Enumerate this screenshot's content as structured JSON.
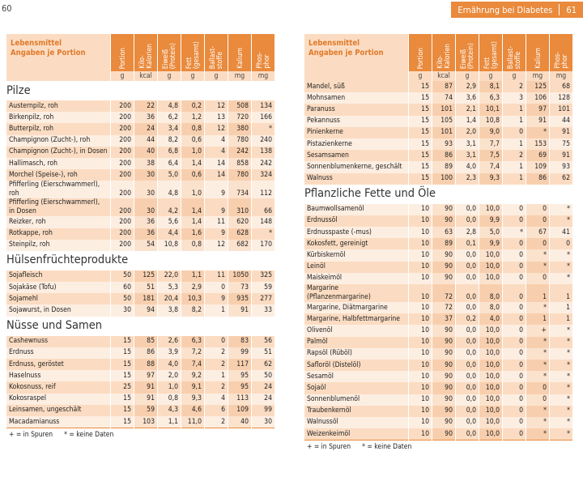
{
  "left_page": {
    "page_number": "60",
    "header": {
      "title_lines": [
        "Lebensmittel",
        "Angaben je Portion"
      ],
      "columns": [
        [
          "Portion"
        ],
        [
          "Kilo-",
          "Kalorien"
        ],
        [
          "Eiweiß",
          "(Protein)"
        ],
        [
          "Fett",
          "(gesamt)"
        ],
        [
          "Ballast-",
          "stoffe"
        ],
        [
          "Kalium"
        ],
        [
          "Phos-",
          "phor"
        ]
      ],
      "units": [
        "g",
        "kcal",
        "g",
        "g",
        "g",
        "mg",
        "mg"
      ]
    },
    "sections": [
      {
        "title": "Pilze",
        "rows": [
          {
            "name": "Austernpilz, roh",
            "values": [
              "200",
              "22",
              "4,8",
              "0,2",
              "12",
              "508",
              "134"
            ]
          },
          {
            "name": "Birkenpilz, roh",
            "values": [
              "200",
              "36",
              "6,2",
              "1,2",
              "13",
              "720",
              "166"
            ]
          },
          {
            "name": "Butterpilz, roh",
            "values": [
              "200",
              "24",
              "3,4",
              "0,8",
              "12",
              "380",
              "*"
            ]
          },
          {
            "name": "Champignon (Zucht-), roh",
            "values": [
              "200",
              "44",
              "8,2",
              "0,6",
              "4",
              "780",
              "240"
            ]
          },
          {
            "name": "Champignon (Zucht-), in Dosen",
            "values": [
              "200",
              "40",
              "6,8",
              "1,0",
              "4",
              "242",
              "138"
            ]
          },
          {
            "name": "Hallimasch, roh",
            "values": [
              "200",
              "38",
              "6,4",
              "1,4",
              "14",
              "858",
              "242"
            ]
          },
          {
            "name": "Morchel (Speise-), roh",
            "values": [
              "200",
              "30",
              "5,0",
              "0,6",
              "14",
              "780",
              "324"
            ]
          },
          {
            "name_lines": [
              "Pfifferling (Eierschwammerl),",
              "roh"
            ],
            "values": [
              "200",
              "30",
              "4,8",
              "1,0",
              "9",
              "734",
              "112"
            ]
          },
          {
            "name_lines": [
              "Pfifferling (Eierschwammerl),",
              "in Dosen"
            ],
            "values": [
              "200",
              "30",
              "4,2",
              "1,4",
              "9",
              "310",
              "66"
            ]
          },
          {
            "name": "Reizker, roh",
            "values": [
              "200",
              "36",
              "5,6",
              "1,4",
              "11",
              "620",
              "148"
            ]
          },
          {
            "name": "Rotkappe, roh",
            "values": [
              "200",
              "36",
              "4,4",
              "1,6",
              "9",
              "628",
              "*"
            ]
          },
          {
            "name": "Steinpilz, roh",
            "values": [
              "200",
              "54",
              "10,8",
              "0,8",
              "12",
              "682",
              "170"
            ]
          }
        ]
      },
      {
        "title": "Hülsenfrüchteprodukte",
        "rows": [
          {
            "name": "Sojafleisch",
            "values": [
              "50",
              "125",
              "22,0",
              "1,1",
              "11",
              "1050",
              "325"
            ]
          },
          {
            "name": "Sojakäse (Tofu)",
            "values": [
              "60",
              "51",
              "5,3",
              "2,9",
              "0",
              "73",
              "59"
            ]
          },
          {
            "name": "Sojamehl",
            "values": [
              "50",
              "181",
              "20,4",
              "10,3",
              "9",
              "935",
              "277"
            ]
          },
          {
            "name": "Sojawurst, in Dosen",
            "values": [
              "30",
              "94",
              "3,8",
              "8,2",
              "1",
              "91",
              "33"
            ]
          }
        ]
      },
      {
        "title": "Nüsse und Samen",
        "rows": [
          {
            "name": "Cashewnuss",
            "values": [
              "15",
              "85",
              "2,6",
              "6,3",
              "0",
              "83",
              "56"
            ]
          },
          {
            "name": "Erdnuss",
            "values": [
              "15",
              "86",
              "3,9",
              "7,2",
              "2",
              "99",
              "51"
            ]
          },
          {
            "name": "Erdnuss, geröstet",
            "values": [
              "15",
              "88",
              "4,0",
              "7,4",
              "2",
              "117",
              "62"
            ]
          },
          {
            "name": "Haselnuss",
            "values": [
              "15",
              "97",
              "2,0",
              "9,2",
              "1",
              "95",
              "50"
            ]
          },
          {
            "name": "Kokosnuss, reif",
            "values": [
              "25",
              "91",
              "1,0",
              "9,1",
              "2",
              "95",
              "24"
            ]
          },
          {
            "name": "Kokosraspel",
            "values": [
              "15",
              "91",
              "0,8",
              "9,3",
              "4",
              "113",
              "24"
            ]
          },
          {
            "name": "Leinsamen, ungeschält",
            "values": [
              "15",
              "59",
              "4,3",
              "4,6",
              "6",
              "109",
              "99"
            ]
          },
          {
            "name": "Macadamianuss",
            "values": [
              "15",
              "103",
              "1,1",
              "11,0",
              "2",
              "40",
              "30"
            ]
          }
        ]
      }
    ],
    "footnotes": [
      "+ = in Spuren",
      "* = keine Daten"
    ]
  },
  "right_page": {
    "running_title": "Ernährung bei Diabetes",
    "page_number": "61",
    "header": {
      "title_lines": [
        "Lebensmittel",
        "Angaben je Portion"
      ],
      "columns": [
        [
          "Portion"
        ],
        [
          "Kilo-",
          "Kalorien"
        ],
        [
          "Eiweiß",
          "(Protein)"
        ],
        [
          "Fett",
          "(gesamt)"
        ],
        [
          "Ballast-",
          "stoffe"
        ],
        [
          "Kalium"
        ],
        [
          "Phos-",
          "phor"
        ]
      ],
      "units": [
        "g",
        "kcal",
        "g",
        "g",
        "g",
        "mg",
        "mg"
      ]
    },
    "sections": [
      {
        "rows": [
          {
            "name": "Mandel, süß",
            "values": [
              "15",
              "87",
              "2,9",
              "8,1",
              "2",
              "125",
              "68"
            ]
          },
          {
            "name": "Mohnsamen",
            "values": [
              "15",
              "74",
              "3,6",
              "6,3",
              "3",
              "106",
              "128"
            ]
          },
          {
            "name": "Paranuss",
            "values": [
              "15",
              "101",
              "2,1",
              "10,1",
              "1",
              "97",
              "101"
            ]
          },
          {
            "name": "Pekannuss",
            "values": [
              "15",
              "105",
              "1,4",
              "10,8",
              "1",
              "91",
              "44"
            ]
          },
          {
            "name": "Pinienkerne",
            "values": [
              "15",
              "101",
              "2,0",
              "9,0",
              "0",
              "*",
              "91"
            ]
          },
          {
            "name": "Pistazienkerne",
            "values": [
              "15",
              "93",
              "3,1",
              "7,7",
              "1",
              "153",
              "75"
            ]
          },
          {
            "name": "Sesamsamen",
            "values": [
              "15",
              "86",
              "3,1",
              "7,5",
              "2",
              "69",
              "91"
            ]
          },
          {
            "name": "Sonnenblumenkerne, geschält",
            "values": [
              "15",
              "89",
              "4,0",
              "7,4",
              "1",
              "109",
              "93"
            ]
          },
          {
            "name": "Walnuss",
            "values": [
              "15",
              "100",
              "2,3",
              "9,3",
              "1",
              "86",
              "62"
            ]
          }
        ]
      },
      {
        "title": "Pflanzliche Fette und Öle",
        "rows": [
          {
            "name": "Baumwollsamenöl",
            "values": [
              "10",
              "90",
              "0,0",
              "10,0",
              "0",
              "0",
              "*"
            ]
          },
          {
            "name": "Erdnussöl",
            "values": [
              "10",
              "90",
              "0,0",
              "9,9",
              "0",
              "0",
              "*"
            ]
          },
          {
            "name": "Erdnusspaste (-mus)",
            "values": [
              "10",
              "63",
              "2,8",
              "5,0",
              "*",
              "67",
              "41"
            ]
          },
          {
            "name": "Kokosfett, gereinigt",
            "values": [
              "10",
              "89",
              "0,1",
              "9,9",
              "0",
              "0",
              "0"
            ]
          },
          {
            "name": "Kürbiskernöl",
            "values": [
              "10",
              "90",
              "0,0",
              "10,0",
              "0",
              "*",
              "*"
            ]
          },
          {
            "name": "Leinöl",
            "values": [
              "10",
              "90",
              "0,0",
              "10,0",
              "0",
              "*",
              "*"
            ]
          },
          {
            "name": "Maiskeimöl",
            "values": [
              "10",
              "90",
              "0,0",
              "10,0",
              "0",
              "0",
              "*"
            ]
          },
          {
            "name_lines": [
              "Margarine",
              "(Pflanzenmargarine)"
            ],
            "values": [
              "10",
              "72",
              "0,0",
              "8,0",
              "0",
              "1",
              "1"
            ]
          },
          {
            "name": "Margarine, Diätmargarine",
            "values": [
              "10",
              "72",
              "0,0",
              "8,0",
              "0",
              "*",
              "1"
            ]
          },
          {
            "name": "Margarine, Halbfettmargarine",
            "values": [
              "10",
              "37",
              "0,2",
              "4,0",
              "0",
              "1",
              "1"
            ]
          },
          {
            "name": "Olivenöl",
            "values": [
              "10",
              "90",
              "0,0",
              "10,0",
              "0",
              "+",
              "*"
            ]
          },
          {
            "name": "Palmöl",
            "values": [
              "10",
              "90",
              "0,0",
              "10,0",
              "0",
              "*",
              "*"
            ]
          },
          {
            "name": "Rapsöl (Rüböl)",
            "values": [
              "10",
              "90",
              "0,0",
              "10,0",
              "0",
              "*",
              "*"
            ]
          },
          {
            "name": "Safloröl (Distelöl)",
            "values": [
              "10",
              "90",
              "0,0",
              "10,0",
              "0",
              "*",
              "*"
            ]
          },
          {
            "name": "Sesamöl",
            "values": [
              "10",
              "90",
              "0,0",
              "10,0",
              "0",
              "*",
              "*"
            ]
          },
          {
            "name": "Sojaöl",
            "values": [
              "10",
              "90",
              "0,0",
              "10,0",
              "0",
              "0",
              "*"
            ]
          },
          {
            "name": "Sonnenblumenöl",
            "values": [
              "10",
              "90",
              "0,0",
              "10,0",
              "0",
              "0",
              "*"
            ]
          },
          {
            "name": "Traubenkernöl",
            "values": [
              "10",
              "90",
              "0,0",
              "10,0",
              "0",
              "*",
              "*"
            ]
          },
          {
            "name": "Walnussöl",
            "values": [
              "10",
              "90",
              "0,0",
              "10,0",
              "0",
              "*",
              "*"
            ]
          },
          {
            "name": "Weizenkeimöl",
            "values": [
              "10",
              "90",
              "0,0",
              "10,0",
              "0",
              "*",
              "*"
            ]
          }
        ]
      }
    ],
    "footnotes": [
      "+ = in Spuren",
      "* = keine Daten"
    ]
  }
}
